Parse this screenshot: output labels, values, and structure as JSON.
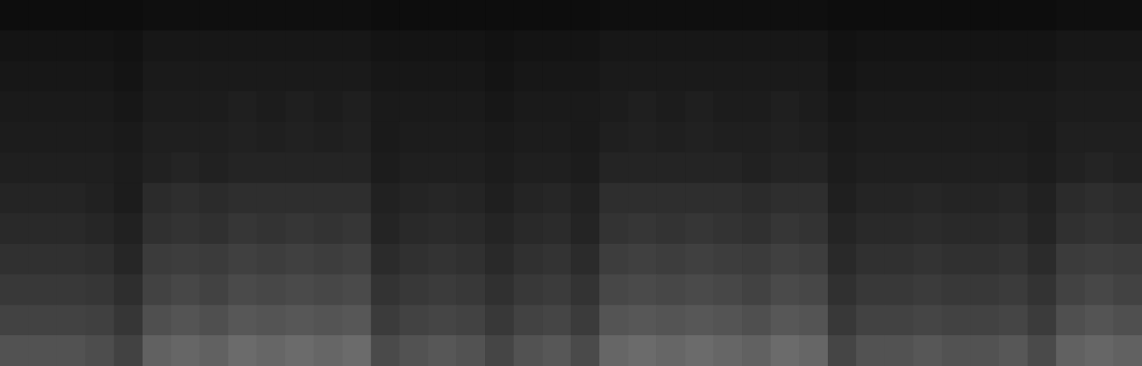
{
  "chart_data": {
    "type": "heatmap",
    "tick_labels": false,
    "grid": false,
    "color_range": [
      0,
      100
    ],
    "cells": [
      [
        32,
        32,
        32,
        30,
        26,
        38,
        40,
        38,
        42,
        40,
        42,
        40,
        42,
        29,
        32,
        34,
        32,
        27,
        32,
        34,
        29,
        40,
        42,
        40,
        42,
        40,
        38,
        42,
        40,
        27,
        32,
        32,
        34,
        32,
        32,
        34,
        29,
        38,
        40,
        38
      ],
      [
        26,
        26,
        26,
        25,
        21,
        31,
        33,
        31,
        34,
        33,
        34,
        33,
        34,
        23,
        26,
        27,
        26,
        22,
        26,
        27,
        23,
        33,
        34,
        33,
        34,
        33,
        31,
        34,
        33,
        22,
        26,
        26,
        27,
        26,
        26,
        27,
        23,
        31,
        33,
        31
      ],
      [
        22,
        22,
        22,
        21,
        18,
        26,
        28,
        26,
        29,
        28,
        29,
        28,
        29,
        20,
        22,
        23,
        22,
        19,
        22,
        23,
        20,
        28,
        29,
        28,
        29,
        28,
        26,
        29,
        28,
        19,
        22,
        22,
        23,
        22,
        22,
        23,
        20,
        26,
        28,
        26
      ],
      [
        19,
        19,
        19,
        18,
        15,
        23,
        24,
        23,
        25,
        24,
        25,
        24,
        25,
        17,
        19,
        20,
        19,
        16,
        19,
        20,
        17,
        24,
        25,
        24,
        25,
        24,
        23,
        25,
        24,
        16,
        19,
        19,
        20,
        19,
        19,
        20,
        17,
        23,
        24,
        23
      ],
      [
        16,
        16,
        16,
        15,
        13,
        19,
        20,
        19,
        21,
        20,
        21,
        20,
        21,
        14,
        16,
        17,
        16,
        14,
        16,
        17,
        14,
        20,
        21,
        20,
        21,
        20,
        19,
        21,
        20,
        14,
        16,
        16,
        17,
        16,
        16,
        17,
        14,
        19,
        20,
        19
      ],
      [
        14,
        14,
        14,
        13,
        11,
        17,
        18,
        17,
        18,
        18,
        18,
        18,
        18,
        13,
        14,
        15,
        14,
        12,
        14,
        15,
        13,
        18,
        18,
        18,
        18,
        18,
        17,
        18,
        18,
        12,
        14,
        14,
        15,
        14,
        14,
        15,
        13,
        17,
        18,
        17
      ],
      [
        12,
        12,
        12,
        12,
        11,
        13,
        14,
        13,
        14,
        14,
        14,
        14,
        14,
        11,
        12,
        12,
        12,
        11,
        12,
        12,
        11,
        14,
        14,
        14,
        14,
        14,
        13,
        14,
        14,
        11,
        12,
        12,
        12,
        12,
        12,
        12,
        11,
        13,
        14,
        13
      ],
      [
        11,
        11,
        11,
        11,
        10,
        12,
        12,
        12,
        13,
        12,
        13,
        12,
        13,
        10,
        11,
        11,
        11,
        10,
        11,
        11,
        10,
        12,
        13,
        12,
        13,
        12,
        12,
        13,
        12,
        10,
        11,
        11,
        11,
        11,
        11,
        11,
        10,
        12,
        12,
        12
      ],
      [
        10,
        10,
        10,
        10,
        9,
        11,
        11,
        11,
        12,
        11,
        12,
        11,
        12,
        10,
        10,
        10,
        10,
        9,
        10,
        10,
        10,
        11,
        12,
        11,
        12,
        11,
        11,
        12,
        11,
        9,
        10,
        10,
        10,
        10,
        10,
        10,
        10,
        11,
        11,
        11
      ],
      [
        9,
        9,
        9,
        9,
        8,
        10,
        10,
        10,
        10,
        10,
        10,
        10,
        10,
        9,
        9,
        9,
        9,
        8,
        9,
        9,
        9,
        10,
        10,
        10,
        10,
        10,
        10,
        10,
        10,
        8,
        9,
        9,
        9,
        9,
        9,
        9,
        9,
        10,
        10,
        10
      ],
      [
        8,
        8,
        8,
        8,
        7,
        9,
        9,
        9,
        9,
        9,
        9,
        9,
        9,
        8,
        8,
        8,
        8,
        7,
        8,
        8,
        8,
        9,
        9,
        9,
        9,
        9,
        9,
        9,
        9,
        7,
        8,
        8,
        8,
        8,
        8,
        8,
        8,
        9,
        9,
        9
      ],
      [
        5,
        5,
        5,
        5,
        5,
        6,
        6,
        6,
        6,
        6,
        6,
        6,
        6,
        5,
        5,
        5,
        5,
        5,
        5,
        5,
        5,
        6,
        6,
        6,
        6,
        6,
        6,
        6,
        6,
        5,
        5,
        5,
        5,
        5,
        5,
        5,
        5,
        6,
        6,
        6
      ]
    ]
  }
}
